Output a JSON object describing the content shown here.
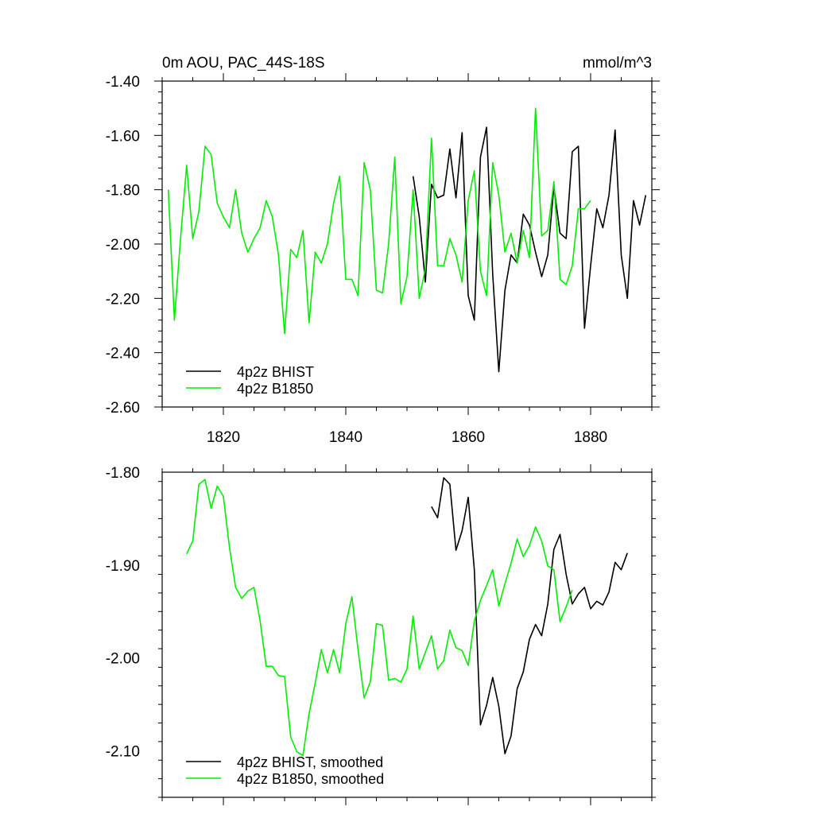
{
  "figure": {
    "top_left_title": "0m AOU, PAC_44S-18S",
    "top_right_title": "mmol/m^3"
  },
  "colors": {
    "bhist": "#000000",
    "b1850": "#00ee00",
    "axis": "#000000"
  },
  "chart_data": [
    {
      "type": "line",
      "title": "0m AOU, PAC_44S-18S",
      "units_label": "mmol/m^3",
      "xlim": [
        1810,
        1890
      ],
      "ylim": [
        -2.6,
        -1.4
      ],
      "y_tick_values": [
        -2.6,
        -2.4,
        -2.2,
        -2.0,
        -1.8,
        -1.6,
        -1.4
      ],
      "y_tick_labels": [
        "-2.60",
        "-2.40",
        "-2.20",
        "-2.00",
        "-1.80",
        "-1.60",
        "-1.40"
      ],
      "x_tick_values": [
        1820,
        1840,
        1860,
        1880
      ],
      "x_tick_labels": [
        "1820",
        "1840",
        "1860",
        "1880"
      ],
      "legend_position": "bottom-left",
      "series": [
        {
          "name": "4p2z BHIST",
          "color": "#000000",
          "x_start": 1851,
          "values": [
            -1.75,
            -1.9,
            -2.14,
            -1.78,
            -1.83,
            -1.82,
            -1.65,
            -1.83,
            -1.59,
            -2.19,
            -2.28,
            -1.68,
            -1.57,
            -2.11,
            -2.47,
            -2.17,
            -2.04,
            -2.07,
            -1.89,
            -1.93,
            -2.03,
            -2.12,
            -2.04,
            -1.79,
            -1.96,
            -1.98,
            -1.66,
            -1.64,
            -2.31,
            -2.08,
            -1.87,
            -1.94,
            -1.82,
            -1.58,
            -2.04,
            -2.2,
            -1.84,
            -1.93,
            -1.82
          ]
        },
        {
          "name": "4p2z B1850",
          "color": "#00ee00",
          "x_start": 1811,
          "values": [
            -1.8,
            -2.28,
            -1.98,
            -1.71,
            -1.98,
            -1.88,
            -1.64,
            -1.67,
            -1.85,
            -1.9,
            -1.94,
            -1.8,
            -1.96,
            -2.03,
            -1.98,
            -1.94,
            -1.84,
            -1.9,
            -2.04,
            -2.33,
            -2.02,
            -2.05,
            -1.95,
            -2.29,
            -2.03,
            -2.07,
            -2.0,
            -1.85,
            -1.75,
            -2.13,
            -2.13,
            -2.19,
            -1.7,
            -1.8,
            -2.17,
            -2.18,
            -2.0,
            -1.68,
            -2.22,
            -2.12,
            -1.8,
            -2.2,
            -2.09,
            -1.61,
            -2.08,
            -2.08,
            -1.98,
            -2.04,
            -2.14,
            -1.84,
            -1.73,
            -2.1,
            -2.19,
            -1.7,
            -1.82,
            -2.03,
            -1.96,
            -2.07,
            -1.95,
            -2.05,
            -1.5,
            -1.97,
            -1.95,
            -1.77,
            -2.13,
            -2.15,
            -2.08,
            -1.87,
            -1.87,
            -1.84
          ]
        }
      ]
    },
    {
      "type": "line",
      "xlim": [
        1810,
        1890
      ],
      "ylim": [
        -2.15,
        -1.8
      ],
      "y_tick_values": [
        -2.1,
        -2.0,
        -1.9,
        -1.8
      ],
      "y_tick_labels": [
        "-2.10",
        "-2.00",
        "-1.90",
        "-1.80"
      ],
      "x_tick_values": [
        1820,
        1840,
        1860,
        1880
      ],
      "x_tick_labels": [],
      "legend_position": "bottom-left",
      "series": [
        {
          "name": "4p2z BHIST, smoothed",
          "color": "#000000",
          "x_start": 1854,
          "values": [
            -1.837,
            -1.849,
            -1.806,
            -1.813,
            -1.884,
            -1.863,
            -1.827,
            -1.905,
            -2.072,
            -2.051,
            -2.021,
            -2.052,
            -2.103,
            -2.084,
            -2.033,
            -2.015,
            -1.98,
            -1.964,
            -1.976,
            -1.942,
            -1.883,
            -1.867,
            -1.91,
            -1.942,
            -1.931,
            -1.924,
            -1.947,
            -1.939,
            -1.943,
            -1.929,
            -1.897,
            -1.905,
            -1.887
          ]
        },
        {
          "name": "4p2z B1850, smoothed",
          "color": "#00ee00",
          "x_start": 1814,
          "values": [
            -1.888,
            -1.874,
            -1.813,
            -1.808,
            -1.839,
            -1.815,
            -1.826,
            -1.881,
            -1.924,
            -1.936,
            -1.928,
            -1.924,
            -1.96,
            -2.009,
            -2.009,
            -2.019,
            -2.02,
            -2.085,
            -2.101,
            -2.105,
            -2.06,
            -2.027,
            -1.991,
            -2.016,
            -1.991,
            -2.016,
            -1.963,
            -1.934,
            -1.991,
            -2.043,
            -2.026,
            -1.963,
            -1.965,
            -2.024,
            -2.022,
            -2.026,
            -2.012,
            -1.955,
            -2.012,
            -1.994,
            -1.976,
            -2.012,
            -2.003,
            -1.97,
            -1.989,
            -1.992,
            -2.008,
            -1.96,
            -1.938,
            -1.922,
            -1.905,
            -1.944,
            -1.92,
            -1.898,
            -1.872,
            -1.891,
            -1.879,
            -1.859,
            -1.874,
            -1.901,
            -1.905,
            -1.961,
            -1.945,
            -1.927
          ]
        }
      ]
    }
  ]
}
